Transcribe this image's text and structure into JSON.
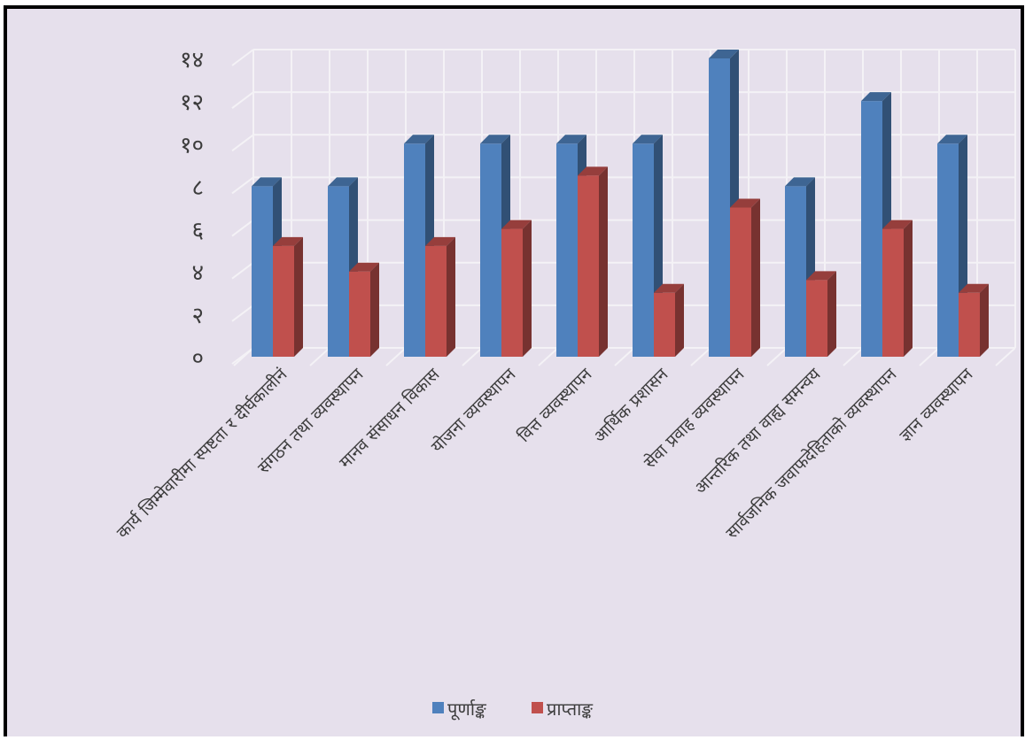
{
  "chart_data": {
    "type": "bar",
    "title": "",
    "categories": [
      "कार्य जिम्मेवारीमा स्पष्टता र दीर्घकालीनं",
      "संगठन तथा व्यवस्थापन",
      "मानव संसाधन विकास",
      "योजना व्यवस्थापन",
      "वित्त व्यवस्थापन",
      "आर्थिक प्रशासन",
      "सेवा प्रवाह व्यवस्थापन",
      "आन्तरिक तथा वाह्य समन्वय",
      "सार्वजनिक जवाफदेहिताको व्यवस्थापन",
      "ज्ञान व्यवस्थापन"
    ],
    "series": [
      {
        "name": "पूर्णाङ्क",
        "color": "#4f81bd",
        "values": [
          8,
          8,
          10,
          10,
          10,
          10,
          14,
          8,
          12,
          10
        ]
      },
      {
        "name": "प्राप्ताङ्क",
        "color": "#c0504d",
        "values": [
          5.2,
          4,
          5.2,
          6,
          8.5,
          3,
          7,
          3.6,
          6,
          3
        ]
      }
    ],
    "ylim": [
      0,
      14
    ],
    "yticks": [
      0,
      2,
      4,
      6,
      8,
      10,
      12,
      14
    ],
    "ytick_labels": [
      "०",
      "२",
      "४",
      "६",
      "८",
      "१०",
      "१२",
      "१४"
    ],
    "grid": true,
    "legend_position": "bottom"
  }
}
